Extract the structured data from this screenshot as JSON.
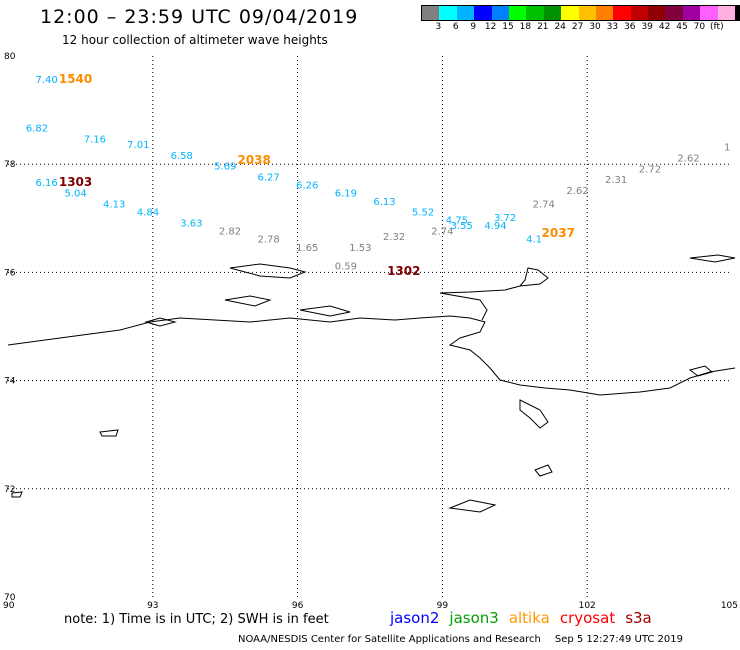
{
  "header": {
    "title": "12:00 – 23:59 UTC 09/04/2019",
    "subtitle": "12 hour collection of altimeter wave heights"
  },
  "scale": {
    "colors": [
      "#808080",
      "#00ffff",
      "#00b4ff",
      "#0000ff",
      "#0080ff",
      "#00ff00",
      "#00c000",
      "#009000",
      "#ffff00",
      "#ffc000",
      "#ff8000",
      "#ff0000",
      "#c00000",
      "#900000",
      "#800040",
      "#a000a0",
      "#ff60ff",
      "#ffb0e0",
      "#000000"
    ],
    "labels": [
      "3",
      "6",
      "9",
      "12",
      "15",
      "18",
      "21",
      "24",
      "27",
      "30",
      "33",
      "36",
      "39",
      "42",
      "45",
      "70",
      "(ft)"
    ]
  },
  "axes": {
    "lat_labels": [
      "80",
      "78",
      "76",
      "74",
      "72",
      "70"
    ],
    "lon_labels": [
      "90",
      "93",
      "96",
      "99",
      "102",
      "105"
    ]
  },
  "chart_data": {
    "type": "scatter",
    "x_axis": "longitude",
    "y_axis": "latitude",
    "xlim": [
      90,
      105
    ],
    "ylim": [
      70,
      80
    ],
    "grid": true,
    "wave_points": [
      {
        "lon": 90.8,
        "lat": 79.5,
        "swh": "7.40",
        "color": "#00b4ff"
      },
      {
        "lon": 90.6,
        "lat": 78.6,
        "swh": "6.82",
        "color": "#00b4ff"
      },
      {
        "lon": 91.8,
        "lat": 78.4,
        "swh": "7.16",
        "color": "#00b4ff"
      },
      {
        "lon": 92.7,
        "lat": 78.3,
        "swh": "7.01",
        "color": "#00b4ff"
      },
      {
        "lon": 93.6,
        "lat": 78.1,
        "swh": "6.58",
        "color": "#00b4ff"
      },
      {
        "lon": 94.5,
        "lat": 77.9,
        "swh": "5.69",
        "color": "#00b4ff"
      },
      {
        "lon": 95.4,
        "lat": 77.7,
        "swh": "6.27",
        "color": "#00b4ff"
      },
      {
        "lon": 96.2,
        "lat": 77.55,
        "swh": "6.26",
        "color": "#00b4ff"
      },
      {
        "lon": 97.0,
        "lat": 77.4,
        "swh": "6.19",
        "color": "#00b4ff"
      },
      {
        "lon": 97.8,
        "lat": 77.25,
        "swh": "6.13",
        "color": "#00b4ff"
      },
      {
        "lon": 98.6,
        "lat": 77.05,
        "swh": "5.52",
        "color": "#00b4ff"
      },
      {
        "lon": 99.3,
        "lat": 76.9,
        "swh": "4.75",
        "color": "#00b4ff"
      },
      {
        "lon": 99.4,
        "lat": 76.8,
        "swh": "3.55",
        "color": "#00b4ff"
      },
      {
        "lon": 100.3,
        "lat": 76.95,
        "swh": "3.72",
        "color": "#00b4ff"
      },
      {
        "lon": 100.1,
        "lat": 76.8,
        "swh": "4.94",
        "color": "#00b4ff"
      },
      {
        "lon": 100.9,
        "lat": 76.55,
        "swh": "4.1",
        "color": "#00b4ff"
      },
      {
        "lon": 90.8,
        "lat": 77.6,
        "swh": "6.16",
        "color": "#00b4ff"
      },
      {
        "lon": 91.4,
        "lat": 77.4,
        "swh": "5.04",
        "color": "#00b4ff"
      },
      {
        "lon": 92.2,
        "lat": 77.2,
        "swh": "4.13",
        "color": "#00b4ff"
      },
      {
        "lon": 92.9,
        "lat": 77.05,
        "swh": "4.84",
        "color": "#00b4ff"
      },
      {
        "lon": 93.8,
        "lat": 76.85,
        "swh": "3.63",
        "color": "#00b4ff"
      },
      {
        "lon": 94.6,
        "lat": 76.7,
        "swh": "2.82",
        "color": "#808080"
      },
      {
        "lon": 95.4,
        "lat": 76.55,
        "swh": "2.78",
        "color": "#808080"
      },
      {
        "lon": 96.2,
        "lat": 76.4,
        "swh": "1.65",
        "color": "#808080"
      },
      {
        "lon": 97.3,
        "lat": 76.4,
        "swh": "1.53",
        "color": "#808080"
      },
      {
        "lon": 97.0,
        "lat": 76.05,
        "swh": "0.59",
        "color": "#808080"
      },
      {
        "lon": 98.0,
        "lat": 76.6,
        "swh": "2.32",
        "color": "#808080"
      },
      {
        "lon": 99.0,
        "lat": 76.7,
        "swh": "2.74",
        "color": "#808080"
      },
      {
        "lon": 101.1,
        "lat": 77.2,
        "swh": "2.74",
        "color": "#808080"
      },
      {
        "lon": 101.8,
        "lat": 77.45,
        "swh": "2.62",
        "color": "#808080"
      },
      {
        "lon": 102.6,
        "lat": 77.65,
        "swh": "2.31",
        "color": "#808080"
      },
      {
        "lon": 103.3,
        "lat": 77.85,
        "swh": "2.72",
        "color": "#808080"
      },
      {
        "lon": 104.1,
        "lat": 78.05,
        "swh": "2.62",
        "color": "#808080"
      },
      {
        "lon": 104.9,
        "lat": 78.25,
        "swh": "1",
        "color": "#808080"
      }
    ],
    "time_labels": [
      {
        "lon": 91.4,
        "lat": 79.5,
        "time": "1540",
        "color": "#ff8c00"
      },
      {
        "lon": 95.1,
        "lat": 78.0,
        "time": "2038",
        "color": "#ff8c00"
      },
      {
        "lon": 91.4,
        "lat": 77.6,
        "time": "1303",
        "color": "#800000"
      },
      {
        "lon": 101.4,
        "lat": 76.65,
        "time": "2037",
        "color": "#ff8c00"
      },
      {
        "lon": 98.2,
        "lat": 75.95,
        "time": "1302",
        "color": "#800000"
      }
    ]
  },
  "note": "note:  1) Time is in UTC;  2) SWH is in feet",
  "legend": [
    {
      "label": "jason2",
      "color": "#0000ff"
    },
    {
      "label": "jason3",
      "color": "#00a000"
    },
    {
      "label": "altika",
      "color": "#ff9900"
    },
    {
      "label": "cryosat",
      "color": "#ff0000"
    },
    {
      "label": "s3a",
      "color": "#a00000"
    }
  ],
  "footer": {
    "agency": "NOAA/NESDIS Center for Satellite Applications and Research",
    "timestamp": "Sep  5 12:27:49 UTC 2019"
  }
}
